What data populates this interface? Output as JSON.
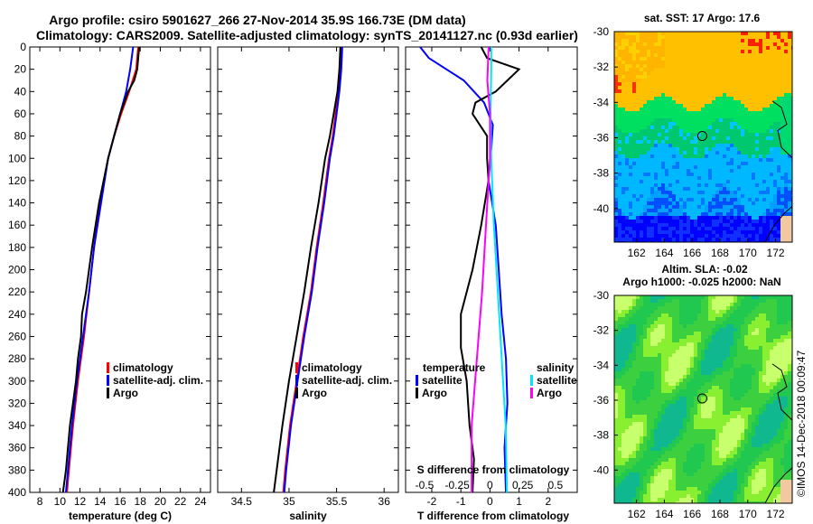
{
  "titles": {
    "line1": "Argo profile: csiro 5901627_266 27-Nov-2014 35.9S 166.73E (DM data)",
    "line2": "Climatology: CARS2009. Satellite-adjusted climatology: synTS_20141127.nc (0.93d earlier)",
    "sst_title": "sat. SST: 17 Argo: 17.6",
    "sla_title1": "Altim. SLA: -0.02",
    "sla_title2": "Argo h1000: -0.025 h2000: NaN",
    "watermark": "©IMOS 14-Dec-2018 00:09:47"
  },
  "colors": {
    "climatology": "#ff0000",
    "satellite": "#0000ff",
    "argo": "#000000",
    "s_satellite": "#00e5ff",
    "s_argo": "#ff00ff"
  },
  "chart_data": [
    {
      "type": "line",
      "id": "temperature",
      "xlabel": "temperature (deg C)",
      "ylabel": "",
      "xlim": [
        7,
        25
      ],
      "ylim": [
        400,
        0
      ],
      "xticks": [
        8,
        10,
        12,
        14,
        16,
        18,
        20,
        22,
        24
      ],
      "yticks": [
        0,
        20,
        40,
        60,
        80,
        100,
        120,
        140,
        160,
        180,
        200,
        220,
        240,
        260,
        280,
        300,
        320,
        340,
        360,
        380,
        400
      ],
      "legend": {
        "position": "center-right",
        "entries": [
          "climatology",
          "satellite-adj. clim.",
          "Argo"
        ]
      },
      "series": [
        {
          "name": "climatology",
          "color": "#ff0000",
          "depth": [
            0,
            20,
            40,
            60,
            80,
            100,
            140,
            180,
            220,
            260,
            300,
            340,
            380,
            400
          ],
          "values": [
            17.8,
            17.6,
            16.9,
            16.1,
            15.4,
            14.8,
            14.0,
            13.4,
            12.9,
            12.4,
            11.8,
            11.3,
            10.9,
            10.7
          ]
        },
        {
          "name": "satellite-adj. clim.",
          "color": "#0000ff",
          "depth": [
            0,
            20,
            40,
            60,
            80,
            100,
            140,
            180,
            220,
            260,
            300,
            340,
            380,
            400
          ],
          "values": [
            17.3,
            17.0,
            16.6,
            16.0,
            15.4,
            14.8,
            14.1,
            13.4,
            12.9,
            12.3,
            11.7,
            11.2,
            10.8,
            10.6
          ]
        },
        {
          "name": "Argo",
          "color": "#000000",
          "depth": [
            0,
            20,
            30,
            40,
            60,
            80,
            100,
            140,
            180,
            220,
            240,
            260,
            280,
            300,
            320,
            340,
            360,
            380,
            400
          ],
          "values": [
            17.9,
            17.7,
            17.4,
            16.8,
            16.0,
            15.4,
            14.8,
            13.9,
            13.2,
            12.6,
            12.2,
            12.1,
            11.8,
            11.6,
            11.3,
            11.0,
            10.8,
            10.6,
            10.3
          ]
        }
      ]
    },
    {
      "type": "line",
      "id": "salinity",
      "xlabel": "salinity",
      "ylabel": "",
      "xlim": [
        34.25,
        36.15
      ],
      "ylim": [
        400,
        0
      ],
      "xticks": [
        34.5,
        35,
        35.5,
        36
      ],
      "legend": {
        "position": "center-right",
        "entries": [
          "climatology",
          "satellite-adj. clim.",
          "Argo"
        ]
      },
      "series": [
        {
          "name": "climatology",
          "color": "#ff0000",
          "depth": [
            0,
            20,
            40,
            60,
            80,
            100,
            140,
            180,
            220,
            260,
            300,
            340,
            380,
            400
          ],
          "values": [
            35.55,
            35.54,
            35.52,
            35.49,
            35.46,
            35.42,
            35.36,
            35.29,
            35.23,
            35.15,
            35.08,
            35.01,
            34.96,
            34.94
          ]
        },
        {
          "name": "satellite-adj. clim.",
          "color": "#0000ff",
          "depth": [
            0,
            20,
            40,
            60,
            80,
            100,
            140,
            180,
            220,
            260,
            300,
            340,
            380,
            400
          ],
          "values": [
            35.56,
            35.55,
            35.53,
            35.5,
            35.47,
            35.43,
            35.37,
            35.3,
            35.24,
            35.16,
            35.09,
            35.02,
            34.97,
            34.95
          ]
        },
        {
          "name": "Argo",
          "color": "#000000",
          "depth": [
            0,
            20,
            40,
            60,
            80,
            100,
            140,
            180,
            220,
            260,
            300,
            340,
            380,
            400
          ],
          "values": [
            35.54,
            35.53,
            35.51,
            35.47,
            35.43,
            35.38,
            35.31,
            35.23,
            35.16,
            35.08,
            35.0,
            34.93,
            34.87,
            34.84
          ]
        }
      ]
    },
    {
      "type": "line",
      "id": "difference",
      "xlabel": "T difference from climatology",
      "ylabel": "",
      "xlim": [
        -2.9,
        3.0
      ],
      "ylim": [
        400,
        0
      ],
      "xticks": [
        -2,
        -1,
        0,
        1,
        2
      ],
      "s_axis_label": "S difference from climatology",
      "s_ticks": [
        "-0.5",
        "-0.25",
        "0",
        "0.25",
        "0.5"
      ],
      "legend_temperature": {
        "title": "temperature",
        "entries": [
          "satellite",
          "Argo"
        ]
      },
      "legend_salinity": {
        "title": "salinity",
        "entries": [
          "satellite",
          "Argo"
        ]
      },
      "series": [
        {
          "name": "T satellite",
          "color": "#0000ff",
          "depth": [
            0,
            10,
            30,
            50,
            70,
            90,
            120,
            160,
            200,
            240,
            280,
            320,
            360,
            400
          ],
          "values": [
            -2.4,
            -2.1,
            -0.9,
            -0.2,
            0.1,
            0.05,
            -0.05,
            0.2,
            0.3,
            0.4,
            0.55,
            0.6,
            0.5,
            0.55
          ]
        },
        {
          "name": "T Argo",
          "color": "#000000",
          "depth": [
            0,
            10,
            20,
            30,
            40,
            50,
            60,
            80,
            100,
            120,
            160,
            200,
            240,
            270,
            300,
            340,
            370,
            400
          ],
          "values": [
            -0.3,
            -0.1,
            1.0,
            0.6,
            0.2,
            -0.5,
            -0.6,
            -0.1,
            -0.1,
            -0.05,
            -0.3,
            -0.6,
            -1.0,
            -1.0,
            -0.8,
            -0.7,
            -0.55,
            -0.6
          ]
        },
        {
          "name": "S satellite",
          "color": "#00e5ff",
          "depth": [
            0,
            20,
            60,
            100,
            160,
            220,
            280,
            340,
            400
          ],
          "values": [
            0.01,
            0.01,
            0.005,
            0.01,
            0.03,
            0.06,
            0.09,
            0.12,
            0.13
          ]
        },
        {
          "name": "S Argo",
          "color": "#ff00ff",
          "depth": [
            0,
            30,
            60,
            100,
            160,
            220,
            280,
            340,
            400
          ],
          "values": [
            -0.01,
            -0.02,
            0,
            0,
            -0.03,
            -0.06,
            -0.1,
            -0.14,
            -0.14
          ]
        }
      ]
    },
    {
      "type": "heatmap",
      "id": "sst-map",
      "title": "sat. SST: 17 Argo: 17.6",
      "xticks": [
        162,
        164,
        166,
        168,
        170,
        172
      ],
      "yticks": [
        -30,
        -32,
        -34,
        -36,
        -38,
        -40
      ],
      "xlim": [
        160.4,
        173.2
      ],
      "ylim": [
        -41.9,
        -30
      ],
      "argo_marker": {
        "lon": 166.73,
        "lat": -35.9
      }
    },
    {
      "type": "heatmap",
      "id": "sla-map",
      "title": "Altim. SLA: -0.02",
      "xticks": [
        162,
        164,
        166,
        168,
        170,
        172
      ],
      "yticks": [
        -30,
        -32,
        -34,
        -36,
        -38,
        -40
      ],
      "xlim": [
        160.4,
        173.2
      ],
      "ylim": [
        -41.9,
        -30
      ],
      "argo_marker": {
        "lon": 166.73,
        "lat": -35.9
      }
    }
  ]
}
